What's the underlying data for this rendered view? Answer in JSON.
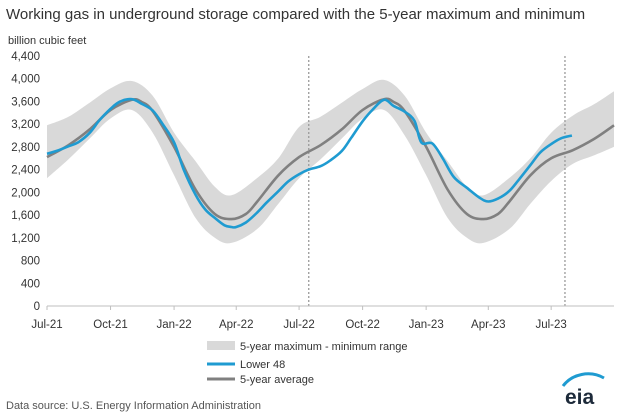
{
  "chart_data": {
    "type": "line",
    "title": "Working gas in underground  storage compared with the 5-year maximum and minimum",
    "ylabel": "billion cubic feet",
    "ylim": [
      0,
      4400
    ],
    "y_ticks": [
      0,
      400,
      800,
      1200,
      1600,
      2000,
      2400,
      2800,
      3200,
      3600,
      4000,
      4400
    ],
    "y_tick_labels": [
      "0",
      "400",
      "800",
      "1,200",
      "1,600",
      "2,000",
      "2,400",
      "2,800",
      "3,200",
      "3,600",
      "4,000",
      "4,400"
    ],
    "xlim": [
      "2021-07-01",
      "2023-09-30"
    ],
    "x_ticks": [
      {
        "date": "2021-07-01",
        "label": "Jul-21"
      },
      {
        "date": "2021-10-01",
        "label": "Oct-21"
      },
      {
        "date": "2022-01-01",
        "label": "Jan-22"
      },
      {
        "date": "2022-04-01",
        "label": "Apr-22"
      },
      {
        "date": "2022-07-01",
        "label": "Jul-22"
      },
      {
        "date": "2022-10-01",
        "label": "Oct-22"
      },
      {
        "date": "2023-01-01",
        "label": "Jan-23"
      },
      {
        "date": "2023-04-01",
        "label": "Apr-23"
      },
      {
        "date": "2023-07-01",
        "label": "Jul-23"
      }
    ],
    "vertical_markers": [
      "2022-07-15",
      "2023-07-21"
    ],
    "grid": false,
    "legend_position": "bottom-center",
    "range_band": {
      "name": "5-year maximum - minimum range",
      "color": "#d9d9d9",
      "points": [
        {
          "x": "2021-07-01",
          "min": 2250,
          "max": 3180
        },
        {
          "x": "2021-08-01",
          "min": 2580,
          "max": 3330
        },
        {
          "x": "2021-09-01",
          "min": 2950,
          "max": 3580
        },
        {
          "x": "2021-10-01",
          "min": 3300,
          "max": 3830
        },
        {
          "x": "2021-11-01",
          "min": 3450,
          "max": 3960
        },
        {
          "x": "2021-12-01",
          "min": 3050,
          "max": 3700
        },
        {
          "x": "2022-01-01",
          "min": 2300,
          "max": 3050
        },
        {
          "x": "2022-02-01",
          "min": 1550,
          "max": 2550
        },
        {
          "x": "2022-03-01",
          "min": 1200,
          "max": 2100
        },
        {
          "x": "2022-03-25",
          "min": 1110,
          "max": 1950
        },
        {
          "x": "2022-05-01",
          "min": 1350,
          "max": 2250
        },
        {
          "x": "2022-06-01",
          "min": 1800,
          "max": 2600
        },
        {
          "x": "2022-07-01",
          "min": 2250,
          "max": 3150
        },
        {
          "x": "2022-08-01",
          "min": 2580,
          "max": 3330
        },
        {
          "x": "2022-09-01",
          "min": 2950,
          "max": 3580
        },
        {
          "x": "2022-10-01",
          "min": 3300,
          "max": 3820
        },
        {
          "x": "2022-11-01",
          "min": 3450,
          "max": 3980
        },
        {
          "x": "2022-12-01",
          "min": 3000,
          "max": 3700
        },
        {
          "x": "2023-01-01",
          "min": 2300,
          "max": 3050
        },
        {
          "x": "2023-02-01",
          "min": 1550,
          "max": 2550
        },
        {
          "x": "2023-03-01",
          "min": 1200,
          "max": 2100
        },
        {
          "x": "2023-03-25",
          "min": 1110,
          "max": 1950
        },
        {
          "x": "2023-05-01",
          "min": 1350,
          "max": 2250
        },
        {
          "x": "2023-06-01",
          "min": 1800,
          "max": 2600
        },
        {
          "x": "2023-07-01",
          "min": 2200,
          "max": 3050
        },
        {
          "x": "2023-08-01",
          "min": 2500,
          "max": 3350
        },
        {
          "x": "2023-09-01",
          "min": 2650,
          "max": 3550
        },
        {
          "x": "2023-09-30",
          "min": 2800,
          "max": 3780
        }
      ]
    },
    "series": [
      {
        "name": "Lower 48",
        "color": "#1f9bd1",
        "points": [
          {
            "x": "2021-07-01",
            "y": 2680
          },
          {
            "x": "2021-07-15",
            "y": 2730
          },
          {
            "x": "2021-08-01",
            "y": 2810
          },
          {
            "x": "2021-08-15",
            "y": 2880
          },
          {
            "x": "2021-09-01",
            "y": 3050
          },
          {
            "x": "2021-09-15",
            "y": 3270
          },
          {
            "x": "2021-10-01",
            "y": 3470
          },
          {
            "x": "2021-10-15",
            "y": 3600
          },
          {
            "x": "2021-11-01",
            "y": 3640
          },
          {
            "x": "2021-11-15",
            "y": 3560
          },
          {
            "x": "2021-12-01",
            "y": 3440
          },
          {
            "x": "2021-12-15",
            "y": 3210
          },
          {
            "x": "2022-01-01",
            "y": 2880
          },
          {
            "x": "2022-01-15",
            "y": 2400
          },
          {
            "x": "2022-02-01",
            "y": 1960
          },
          {
            "x": "2022-02-15",
            "y": 1700
          },
          {
            "x": "2022-03-01",
            "y": 1550
          },
          {
            "x": "2022-03-15",
            "y": 1420
          },
          {
            "x": "2022-03-25",
            "y": 1390
          },
          {
            "x": "2022-04-01",
            "y": 1390
          },
          {
            "x": "2022-04-15",
            "y": 1470
          },
          {
            "x": "2022-05-01",
            "y": 1640
          },
          {
            "x": "2022-05-15",
            "y": 1820
          },
          {
            "x": "2022-06-01",
            "y": 2020
          },
          {
            "x": "2022-06-15",
            "y": 2190
          },
          {
            "x": "2022-07-01",
            "y": 2320
          },
          {
            "x": "2022-07-15",
            "y": 2400
          },
          {
            "x": "2022-08-01",
            "y": 2460
          },
          {
            "x": "2022-08-15",
            "y": 2560
          },
          {
            "x": "2022-09-01",
            "y": 2730
          },
          {
            "x": "2022-09-15",
            "y": 2970
          },
          {
            "x": "2022-10-01",
            "y": 3250
          },
          {
            "x": "2022-10-15",
            "y": 3450
          },
          {
            "x": "2022-11-01",
            "y": 3630
          },
          {
            "x": "2022-11-15",
            "y": 3520
          },
          {
            "x": "2022-12-01",
            "y": 3420
          },
          {
            "x": "2022-12-15",
            "y": 3260
          },
          {
            "x": "2022-12-25",
            "y": 2880
          },
          {
            "x": "2023-01-10",
            "y": 2860
          },
          {
            "x": "2023-01-25",
            "y": 2600
          },
          {
            "x": "2023-02-10",
            "y": 2270
          },
          {
            "x": "2023-03-01",
            "y": 2080
          },
          {
            "x": "2023-03-20",
            "y": 1900
          },
          {
            "x": "2023-04-01",
            "y": 1840
          },
          {
            "x": "2023-04-15",
            "y": 1890
          },
          {
            "x": "2023-05-01",
            "y": 2020
          },
          {
            "x": "2023-05-15",
            "y": 2220
          },
          {
            "x": "2023-06-01",
            "y": 2480
          },
          {
            "x": "2023-06-15",
            "y": 2700
          },
          {
            "x": "2023-07-01",
            "y": 2850
          },
          {
            "x": "2023-07-15",
            "y": 2950
          },
          {
            "x": "2023-07-31",
            "y": 3000
          }
        ]
      },
      {
        "name": "5-year average",
        "color": "#808080",
        "points": [
          {
            "x": "2021-07-01",
            "y": 2620
          },
          {
            "x": "2021-08-01",
            "y": 2830
          },
          {
            "x": "2021-09-01",
            "y": 3110
          },
          {
            "x": "2021-10-01",
            "y": 3450
          },
          {
            "x": "2021-11-01",
            "y": 3630
          },
          {
            "x": "2021-11-15",
            "y": 3590
          },
          {
            "x": "2021-12-01",
            "y": 3430
          },
          {
            "x": "2022-01-01",
            "y": 2800
          },
          {
            "x": "2022-02-01",
            "y": 2050
          },
          {
            "x": "2022-03-01",
            "y": 1620
          },
          {
            "x": "2022-03-25",
            "y": 1530
          },
          {
            "x": "2022-04-15",
            "y": 1620
          },
          {
            "x": "2022-05-01",
            "y": 1830
          },
          {
            "x": "2022-06-01",
            "y": 2300
          },
          {
            "x": "2022-07-01",
            "y": 2620
          },
          {
            "x": "2022-08-01",
            "y": 2830
          },
          {
            "x": "2022-09-01",
            "y": 3110
          },
          {
            "x": "2022-10-01",
            "y": 3450
          },
          {
            "x": "2022-11-01",
            "y": 3640
          },
          {
            "x": "2022-11-15",
            "y": 3590
          },
          {
            "x": "2022-12-01",
            "y": 3430
          },
          {
            "x": "2023-01-01",
            "y": 2800
          },
          {
            "x": "2023-02-01",
            "y": 2050
          },
          {
            "x": "2023-03-01",
            "y": 1620
          },
          {
            "x": "2023-03-25",
            "y": 1530
          },
          {
            "x": "2023-04-15",
            "y": 1620
          },
          {
            "x": "2023-05-01",
            "y": 1830
          },
          {
            "x": "2023-06-01",
            "y": 2300
          },
          {
            "x": "2023-07-01",
            "y": 2600
          },
          {
            "x": "2023-08-01",
            "y": 2740
          },
          {
            "x": "2023-09-01",
            "y": 2940
          },
          {
            "x": "2023-09-30",
            "y": 3180
          }
        ]
      }
    ]
  },
  "legend": {
    "range_label": "5-year maximum - minimum range",
    "lower48_label": "Lower 48",
    "average_label": "5-year average"
  },
  "footer": {
    "source": "Data source:  U.S. Energy Information Administration",
    "logo": "eia"
  },
  "colors": {
    "lower48": "#1f9bd1",
    "average": "#808080",
    "range": "#d9d9d9",
    "axis": "#bfbfbf",
    "marker": "#9a9a9a"
  }
}
